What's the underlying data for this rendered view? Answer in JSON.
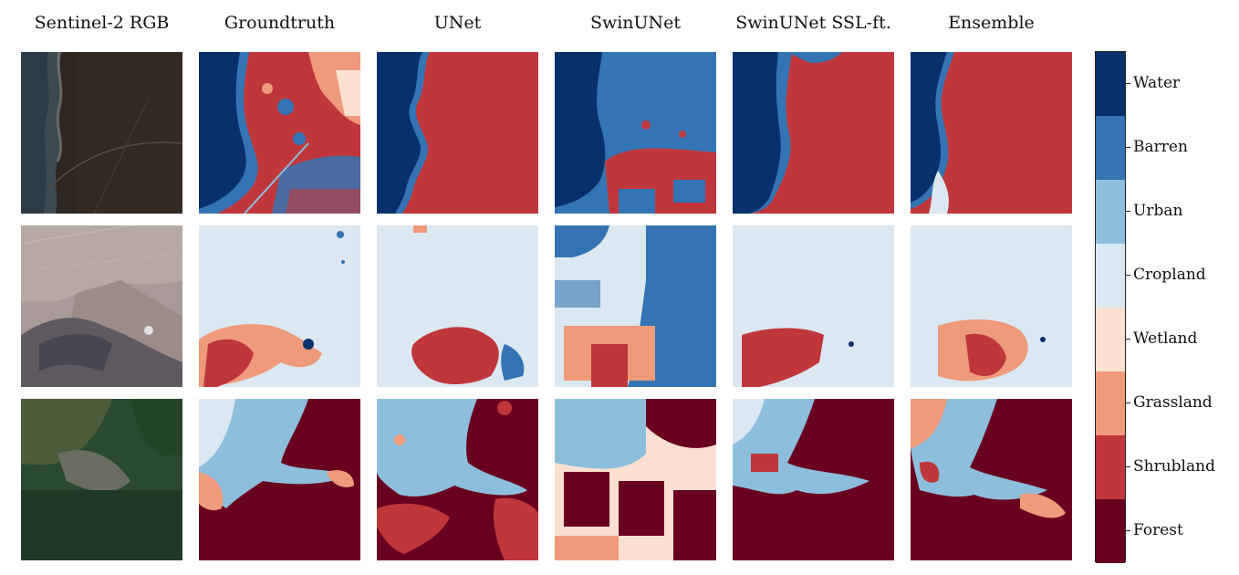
{
  "columns": [
    {
      "title": "Sentinel-2 RGB"
    },
    {
      "title": "Groundtruth"
    },
    {
      "title": "UNet"
    },
    {
      "title": "SwinUNet"
    },
    {
      "title": "SwinUNet SSL-ft."
    },
    {
      "title": "Ensemble"
    }
  ],
  "legend": [
    {
      "label": "Water",
      "color": "#08306b"
    },
    {
      "label": "Barren",
      "color": "#3474b4"
    },
    {
      "label": "Urban",
      "color": "#8dbfdd"
    },
    {
      "label": "Cropland",
      "color": "#dbe8f1"
    },
    {
      "label": "Wetland",
      "color": "#fbe0d2"
    },
    {
      "label": "Grassland",
      "color": "#ee9a7b"
    },
    {
      "label": "Shrubland",
      "color": "#c0373b"
    },
    {
      "label": "Forest",
      "color": "#6a0020"
    }
  ]
}
